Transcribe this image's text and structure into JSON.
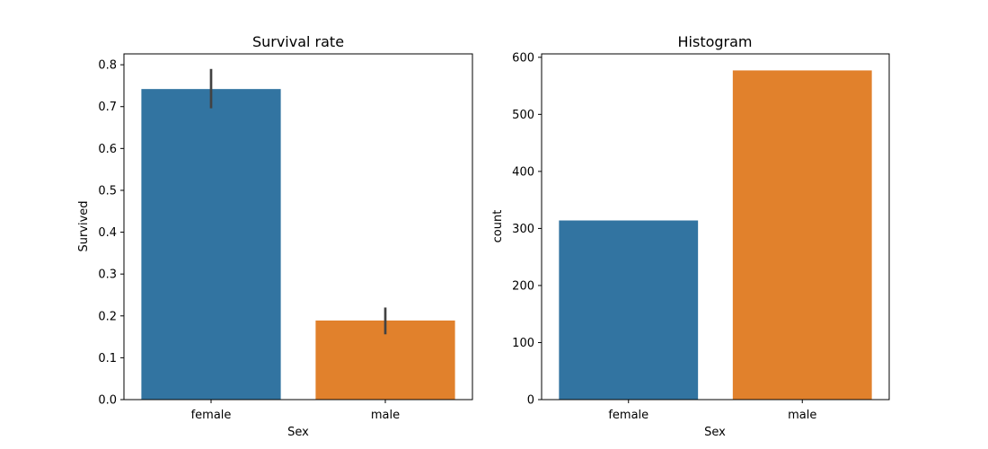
{
  "chart_data": [
    {
      "type": "bar",
      "title": "Survival rate",
      "xlabel": "Sex",
      "ylabel": "Survived",
      "categories": [
        "female",
        "male"
      ],
      "values": [
        0.742,
        0.189
      ],
      "error_bars": [
        [
          0.696,
          0.79
        ],
        [
          0.156,
          0.22
        ]
      ],
      "colors": [
        "#3274a1",
        "#e1812c"
      ],
      "error_color": "#424242",
      "ylim": [
        0,
        0.826
      ],
      "yticks": [
        0.0,
        0.1,
        0.2,
        0.3,
        0.4,
        0.5,
        0.6,
        0.7,
        0.8
      ],
      "ytick_labels": [
        "0.0",
        "0.1",
        "0.2",
        "0.3",
        "0.4",
        "0.5",
        "0.6",
        "0.7",
        "0.8"
      ],
      "grid": false,
      "legend": "none"
    },
    {
      "type": "bar",
      "title": "Histogram",
      "xlabel": "Sex",
      "ylabel": "count",
      "categories": [
        "female",
        "male"
      ],
      "values": [
        314,
        577
      ],
      "colors": [
        "#3274a1",
        "#e1812c"
      ],
      "ylim": [
        0,
        606
      ],
      "yticks": [
        0,
        100,
        200,
        300,
        400,
        500,
        600
      ],
      "ytick_labels": [
        "0",
        "100",
        "200",
        "300",
        "400",
        "500",
        "600"
      ],
      "grid": false,
      "legend": "none"
    }
  ]
}
